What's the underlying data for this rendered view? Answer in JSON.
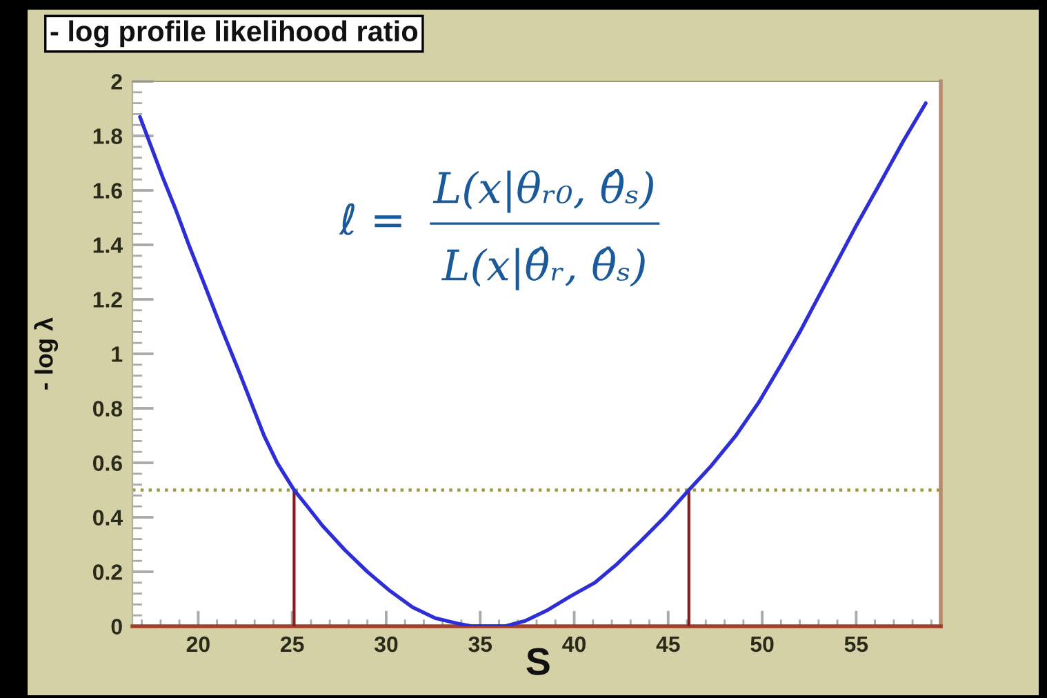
{
  "chart_data": {
    "type": "line",
    "title": "- log profile likelihood ratio",
    "xlabel": "S",
    "ylabel": "- log λ",
    "annotations": [
      "ℓ =",
      "L(x|θᵣ₀, θ̂̂ₛ)",
      "L(x|θ̂ᵣ, θ̂ₛ)"
    ],
    "xlim": [
      16.5,
      59.5
    ],
    "xticks": [
      20,
      25,
      30,
      35,
      40,
      45,
      50,
      55
    ],
    "ylim": [
      0,
      2
    ],
    "yticks": [
      0,
      0.2,
      0.4,
      0.6,
      0.8,
      1,
      1.2,
      1.4,
      1.6,
      1.8,
      2
    ],
    "ref_lines": [
      {
        "axis": "y",
        "value": 0.5,
        "color": "#9c9a4a",
        "line_style": "dotted"
      }
    ],
    "series": [
      {
        "color": "#8b1a1a",
        "x": [
          25.1,
          25.1
        ],
        "values": [
          0,
          0.5
        ]
      },
      {
        "color": "#8b1a1a",
        "x": [
          46.1,
          46.1
        ],
        "values": [
          0,
          0.5
        ]
      },
      {
        "color": "#2e2ed6",
        "x": [
          16.9,
          17.5,
          18.1,
          18.8,
          19.5,
          20.3,
          21.2,
          22.2,
          23.5,
          24.2,
          25.1,
          25.8,
          26.6,
          27.8,
          29.0,
          30.2,
          31.4,
          32.6,
          33.8,
          34.6,
          35.3,
          36.3,
          37.4,
          38.6,
          39.8,
          41.1,
          42.3,
          43.5,
          44.8,
          46.1,
          47.3,
          48.6,
          49.8,
          51.0,
          52.0,
          53.0,
          54.0,
          55.0,
          56.3,
          57.5,
          58.7
        ],
        "values": [
          1.87,
          1.76,
          1.65,
          1.53,
          1.4,
          1.26,
          1.1,
          0.93,
          0.7,
          0.6,
          0.5,
          0.44,
          0.37,
          0.28,
          0.2,
          0.13,
          0.07,
          0.03,
          0.01,
          0,
          0,
          0,
          0.02,
          0.06,
          0.11,
          0.16,
          0.23,
          0.31,
          0.4,
          0.5,
          0.59,
          0.7,
          0.82,
          0.96,
          1.08,
          1.21,
          1.34,
          1.47,
          1.63,
          1.78,
          1.92
        ]
      }
    ]
  }
}
